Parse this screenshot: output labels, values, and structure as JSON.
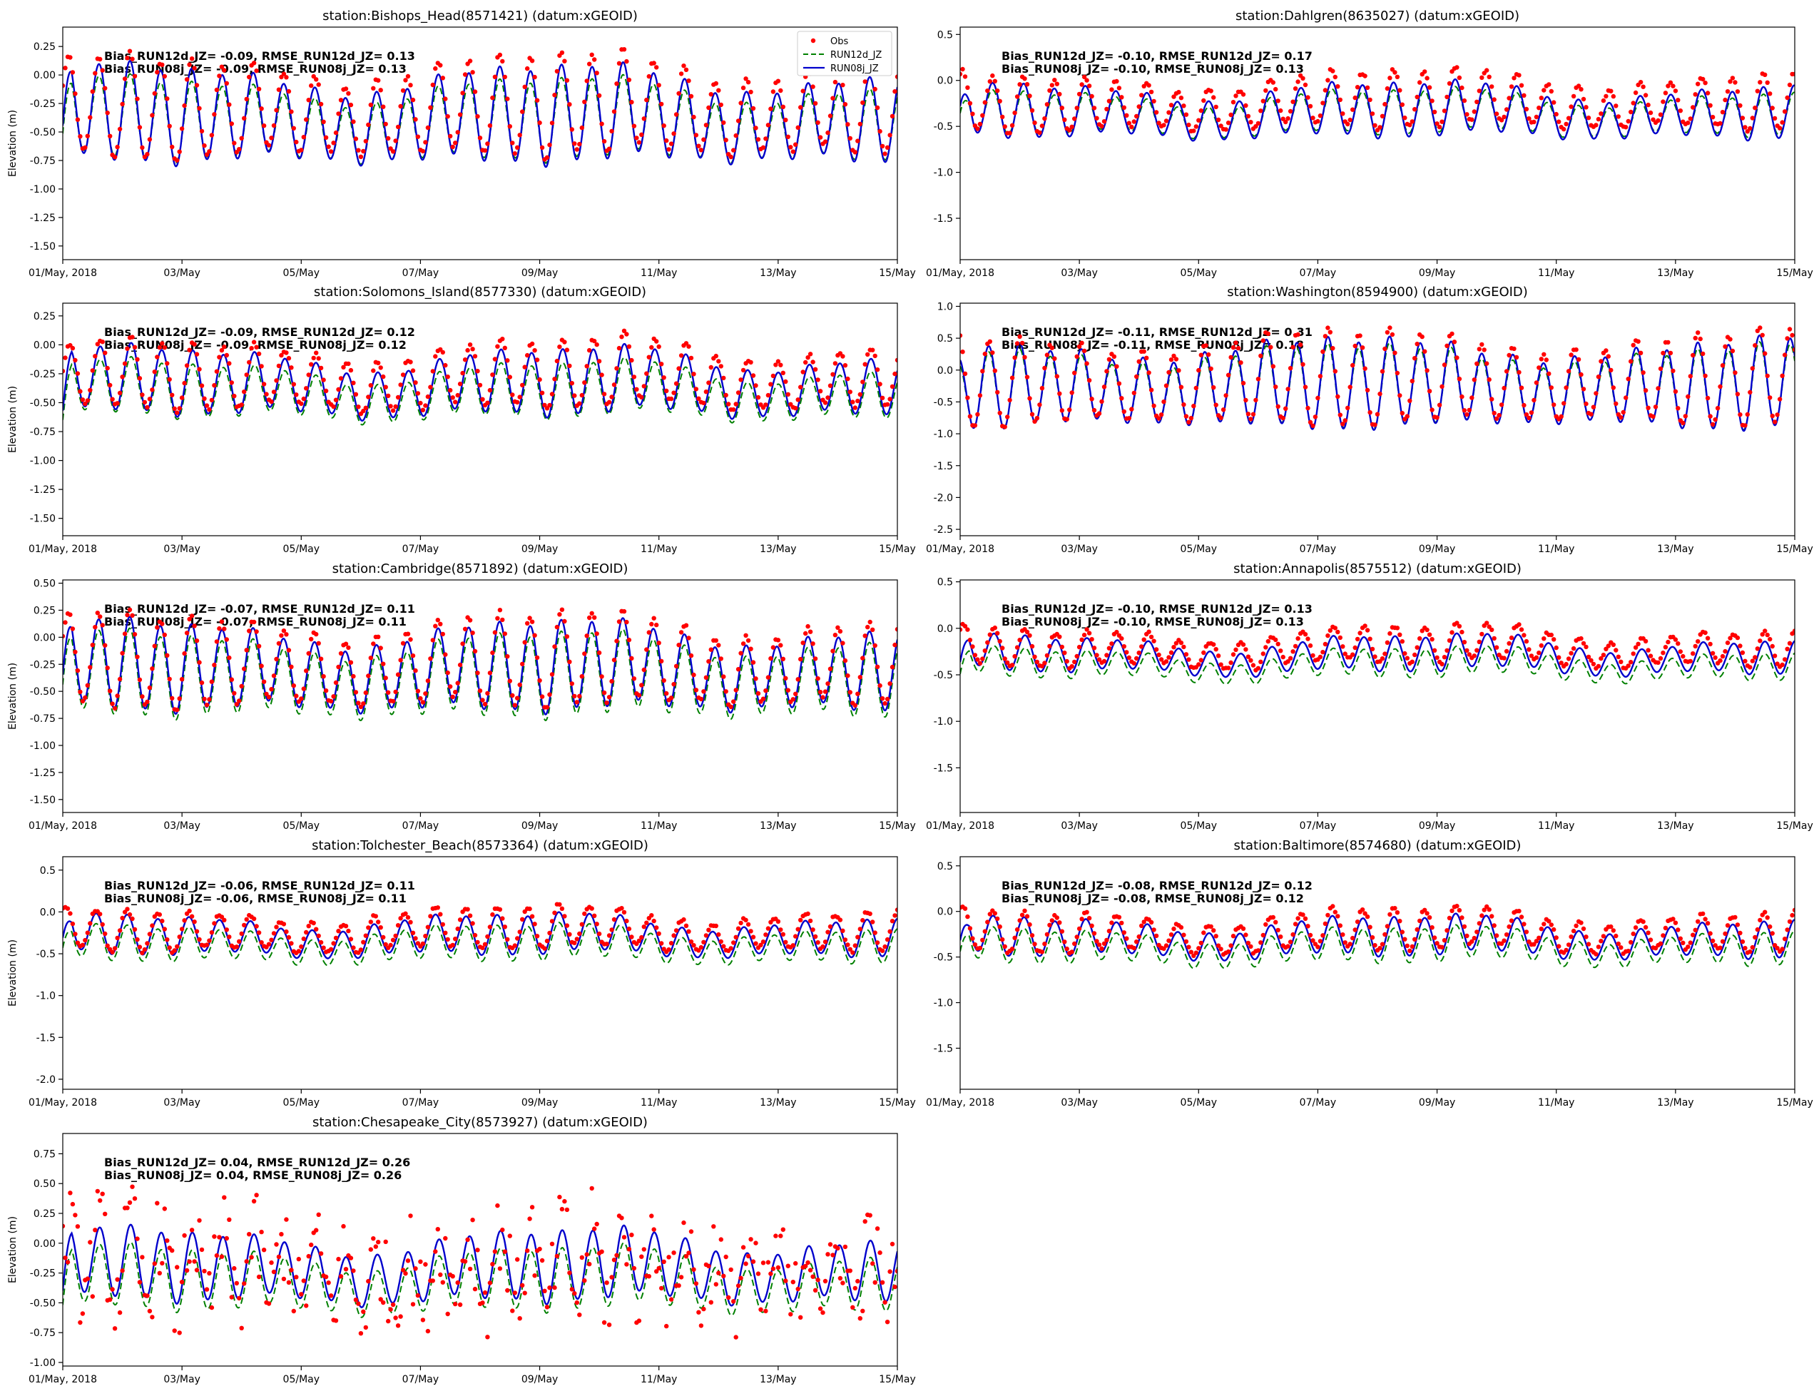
{
  "figure": {
    "xlabel": "",
    "ylabel": "Elevation (m)",
    "x_ticks": [
      "01/May, 2018",
      "03/May",
      "05/May",
      "07/May",
      "09/May",
      "11/May",
      "13/May",
      "15/May"
    ],
    "legend": {
      "placement": "top-right of first panel",
      "entries": [
        {
          "label": "Obs",
          "style": "dots",
          "color": "#ff0000"
        },
        {
          "label": "RUN12d_JZ",
          "style": "dashed",
          "color": "#008000"
        },
        {
          "label": "RUN08j_JZ",
          "style": "solid",
          "color": "#0000cc"
        }
      ]
    }
  },
  "chart_data": [
    {
      "type": "line",
      "title": "station:Bishops_Head(8571421) (datum:xGEOID)",
      "ylabel": "Elevation (m)",
      "xlim": [
        0,
        14
      ],
      "ylim": [
        -1.62,
        0.42
      ],
      "yticks": [
        "0.25",
        "0.00",
        "-0.25",
        "-0.50",
        "-0.75",
        "-1.00",
        "-1.25",
        "-1.50"
      ],
      "ytick_values": [
        0.25,
        0,
        -0.25,
        -0.5,
        -0.75,
        -1.0,
        -1.25,
        -1.5
      ],
      "stats": [
        "Bias_RUN12d_JZ= -0.09, RMSE_RUN12d_JZ=  0.13",
        "Bias_RUN08j_JZ= -0.09, RMSE_RUN08j_JZ=  0.13"
      ],
      "model_wave": {
        "mean": [
          -0.42,
          -0.38
        ],
        "amplitude": [
          0.3,
          0.36
        ],
        "period_days": 0.517,
        "phase": 0.45
      },
      "obs_offset": 0.09,
      "green_offset": 0.0
    },
    {
      "type": "line",
      "title": "station:Dahlgren(8635027) (datum:xGEOID)",
      "ylabel": "",
      "xlim": [
        0,
        14
      ],
      "ylim": [
        -1.95,
        0.58
      ],
      "yticks": [
        "0.5",
        "0.0",
        "-0.5",
        "-1.0",
        "-1.5"
      ],
      "ytick_values": [
        0.5,
        0,
        -0.5,
        -1.0,
        -1.5
      ],
      "stats": [
        "Bias_RUN12d_JZ= -0.10, RMSE_RUN12d_JZ=  0.17",
        "Bias_RUN08j_JZ= -0.10, RMSE_RUN08j_JZ=  0.13"
      ],
      "model_wave": {
        "mean": [
          -0.45,
          -0.35
        ],
        "amplitude": [
          0.2,
          0.25
        ],
        "period_days": 0.517,
        "phase": 1.2
      },
      "obs_offset": 0.12,
      "green_offset": 0.08
    },
    {
      "type": "line",
      "title": "station:Solomons_Island(8577330) (datum:xGEOID)",
      "ylabel": "Elevation (m)",
      "xlim": [
        0,
        14
      ],
      "ylim": [
        -1.65,
        0.36
      ],
      "yticks": [
        "0.25",
        "0.00",
        "-0.25",
        "-0.50",
        "-0.75",
        "-1.00",
        "-1.25",
        "-1.50"
      ],
      "ytick_values": [
        0.25,
        0,
        -0.25,
        -0.5,
        -0.75,
        -1.0,
        -1.25,
        -1.5
      ],
      "stats": [
        "Bias_RUN12d_JZ= -0.09, RMSE_RUN12d_JZ=  0.12",
        "Bias_RUN08j_JZ= -0.09, RMSE_RUN08j_JZ=  0.12"
      ],
      "model_wave": {
        "mean": [
          -0.42,
          -0.35
        ],
        "amplitude": [
          0.2,
          0.24
        ],
        "period_days": 0.517,
        "phase": 0.2
      },
      "obs_offset": 0.08,
      "green_offset": 0.0
    },
    {
      "type": "line",
      "title": "station:Washington(8594900) (datum:xGEOID)",
      "ylabel": "",
      "xlim": [
        0,
        14
      ],
      "ylim": [
        -2.6,
        1.05
      ],
      "yticks": [
        "1.0",
        "0.5",
        "0.0",
        "-0.5",
        "-1.0",
        "-1.5",
        "-2.0",
        "-2.5"
      ],
      "ytick_values": [
        1.0,
        0.5,
        0,
        -0.5,
        -1.0,
        -1.5,
        -2.0,
        -2.5
      ],
      "stats": [
        "Bias_RUN12d_JZ= -0.11, RMSE_RUN12d_JZ=  0.31",
        "Bias_RUN08j_JZ= -0.11, RMSE_RUN08j_JZ=  0.18"
      ],
      "model_wave": {
        "mean": [
          -0.35,
          -0.25
        ],
        "amplitude": [
          0.55,
          0.6
        ],
        "period_days": 0.517,
        "phase": 2.0
      },
      "obs_offset": 0.1,
      "green_offset": 0.06
    },
    {
      "type": "line",
      "title": "station:Cambridge(8571892) (datum:xGEOID)",
      "ylabel": "Elevation (m)",
      "xlim": [
        0,
        14
      ],
      "ylim": [
        -1.62,
        0.53
      ],
      "yticks": [
        "0.50",
        "0.25",
        "0.00",
        "-0.25",
        "-0.50",
        "-0.75",
        "-1.00",
        "-1.25",
        "-1.50"
      ],
      "ytick_values": [
        0.5,
        0.25,
        0,
        -0.25,
        -0.5,
        -0.75,
        -1.0,
        -1.25,
        -1.5
      ],
      "stats": [
        "Bias_RUN12d_JZ= -0.07, RMSE_RUN12d_JZ=  0.11",
        "Bias_RUN08j_JZ= -0.07, RMSE_RUN08j_JZ=  0.11"
      ],
      "model_wave": {
        "mean": [
          -0.38,
          -0.3
        ],
        "amplitude": [
          0.33,
          0.35
        ],
        "period_days": 0.517,
        "phase": 0.5
      },
      "obs_offset": 0.07,
      "green_offset": 0.0
    },
    {
      "type": "line",
      "title": "station:Annapolis(8575512) (datum:xGEOID)",
      "ylabel": "",
      "xlim": [
        0,
        14
      ],
      "ylim": [
        -1.98,
        0.52
      ],
      "yticks": [
        "0.5",
        "0.0",
        "-0.5",
        "-1.0",
        "-1.5"
      ],
      "ytick_values": [
        0.5,
        0,
        -0.5,
        -1.0,
        -1.5
      ],
      "stats": [
        "Bias_RUN12d_JZ= -0.10, RMSE_RUN12d_JZ=  0.13",
        "Bias_RUN08j_JZ= -0.10, RMSE_RUN08j_JZ=  0.13"
      ],
      "model_wave": {
        "mean": [
          -0.4,
          -0.3
        ],
        "amplitude": [
          0.13,
          0.16
        ],
        "period_days": 0.517,
        "phase": 0.9
      },
      "obs_offset": 0.1,
      "green_offset": 0.0
    },
    {
      "type": "line",
      "title": "station:Tolchester_Beach(8573364) (datum:xGEOID)",
      "ylabel": "Elevation (m)",
      "xlim": [
        0,
        14
      ],
      "ylim": [
        -2.12,
        0.66
      ],
      "yticks": [
        "0.5",
        "0.0",
        "-0.5",
        "-1.0",
        "-1.5",
        "-2.0"
      ],
      "ytick_values": [
        0.5,
        0,
        -0.5,
        -1.0,
        -1.5,
        -2.0
      ],
      "stats": [
        "Bias_RUN12d_JZ= -0.06, RMSE_RUN12d_JZ=  0.11",
        "Bias_RUN08j_JZ= -0.06, RMSE_RUN08j_JZ=  0.11"
      ],
      "model_wave": {
        "mean": [
          -0.4,
          -0.3
        ],
        "amplitude": [
          0.18,
          0.2
        ],
        "period_days": 0.517,
        "phase": 1.0
      },
      "obs_offset": 0.08,
      "green_offset": 0.0
    },
    {
      "type": "line",
      "title": "station:Baltimore(8574680) (datum:xGEOID)",
      "ylabel": "",
      "xlim": [
        0,
        14
      ],
      "ylim": [
        -1.95,
        0.6
      ],
      "yticks": [
        "0.5",
        "0.0",
        "-0.5",
        "-1.0",
        "-1.5"
      ],
      "ytick_values": [
        0.5,
        0,
        -0.5,
        -1.0,
        -1.5
      ],
      "stats": [
        "Bias_RUN12d_JZ= -0.08, RMSE_RUN12d_JZ=  0.12",
        "Bias_RUN08j_JZ= -0.08, RMSE_RUN08j_JZ=  0.12"
      ],
      "model_wave": {
        "mean": [
          -0.4,
          -0.3
        ],
        "amplitude": [
          0.16,
          0.18
        ],
        "period_days": 0.517,
        "phase": 1.1
      },
      "obs_offset": 0.08,
      "green_offset": 0.0
    },
    {
      "type": "line",
      "title": "station:Chesapeake_City(8573927) (datum:xGEOID)",
      "ylabel": "Elevation (m)",
      "xlim": [
        0,
        14
      ],
      "ylim": [
        -1.03,
        0.92
      ],
      "yticks": [
        "0.75",
        "0.50",
        "0.25",
        "0.00",
        "-0.25",
        "-0.50",
        "-0.75",
        "-1.00"
      ],
      "ytick_values": [
        0.75,
        0.5,
        0.25,
        0,
        -0.25,
        -0.5,
        -0.75,
        -1.0
      ],
      "stats": [
        "Bias_RUN12d_JZ=  0.04, RMSE_RUN12d_JZ=  0.26",
        "Bias_RUN08j_JZ=  0.04, RMSE_RUN08j_JZ=  0.26"
      ],
      "model_wave": {
        "mean": [
          -0.33,
          -0.22
        ],
        "amplitude": [
          0.22,
          0.25
        ],
        "period_days": 0.517,
        "phase": 0.3
      },
      "obs_offset": 0.0,
      "green_offset": 0.0,
      "obs_scatter": 0.35
    }
  ]
}
